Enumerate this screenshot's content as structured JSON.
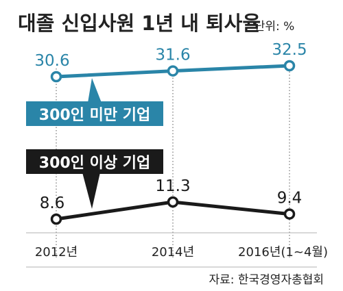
{
  "chart_data": {
    "type": "line",
    "title": "대졸 신입사원 1년 내 퇴사율",
    "unit_label": "단위: %",
    "categories": [
      "2012년",
      "2014년",
      "2016년(1~4월)"
    ],
    "series": [
      {
        "name": "300인 미만 기업",
        "color": "#2a85a8",
        "values": [
          30.6,
          31.6,
          32.5
        ],
        "labels": [
          "30.6",
          "31.6",
          "32.5"
        ]
      },
      {
        "name": "300인 이상 기업",
        "color": "#1a1a1a",
        "values": [
          8.6,
          11.3,
          9.4
        ],
        "labels": [
          "8.6",
          "11.3",
          "9.4"
        ]
      }
    ],
    "grid": "vertical dotted guides at each year",
    "legend": "callout boxes"
  },
  "source": "자료: 한국경영자총협회",
  "colors": {
    "accent": "#2a85a8",
    "dark": "#1a1a1a",
    "divider": "#b0b0b0"
  }
}
